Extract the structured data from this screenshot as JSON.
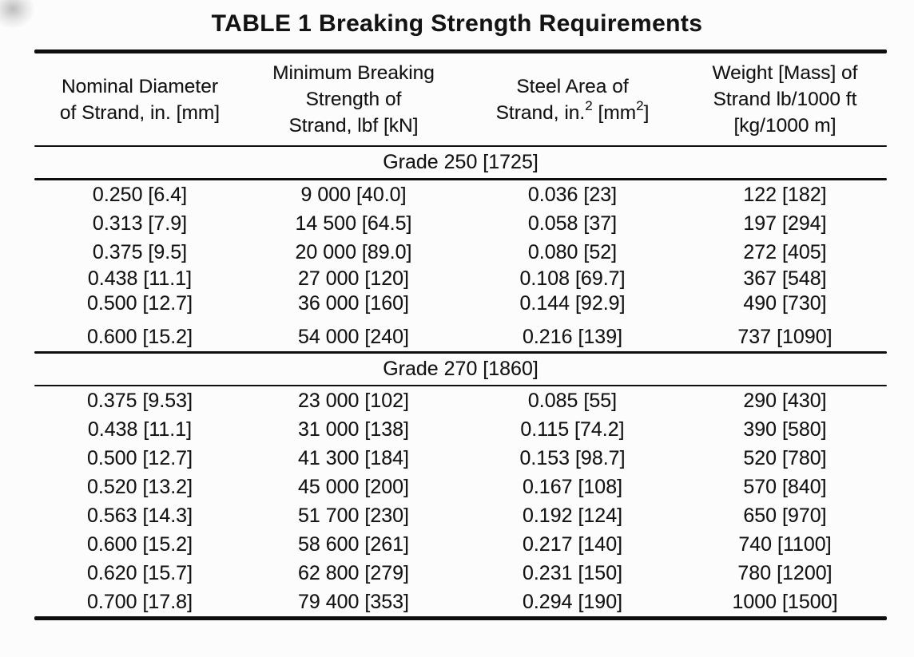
{
  "title": "TABLE 1 Breaking Strength Requirements",
  "colors": {
    "text": "#131313",
    "rule": "#0e0e0e",
    "background": "#fcfcfc"
  },
  "table": {
    "columns": [
      {
        "lines": [
          "Nominal Diameter",
          "of Strand, in. [mm]"
        ]
      },
      {
        "lines": [
          "Minimum Breaking",
          "Strength of",
          "Strand, lbf [kN]"
        ]
      },
      {
        "lines": [
          "Steel Area of"
        ],
        "area_line2": {
          "pre": "Strand, in.",
          "sup1": "2",
          "mid": " [mm",
          "sup2": "2",
          "post": "]"
        }
      },
      {
        "lines": [
          "Weight [Mass] of",
          "Strand lb/1000 ft",
          "[kg/1000 m]"
        ]
      }
    ],
    "sections": [
      {
        "label": "Grade 250 [1725]",
        "rows": [
          [
            "0.250 [6.4]",
            "9 000 [40.0]",
            "0.036 [23]",
            "122 [182]"
          ],
          [
            "0.313 [7.9]",
            "14 500 [64.5]",
            "0.058 [37]",
            "197 [294]"
          ],
          [
            "0.375 [9.5]",
            "20 000 [89.0]",
            "0.080 [52]",
            "272 [405]"
          ],
          [
            "0.438 [11.1]",
            "27 000 [120]",
            "0.108 [69.7]",
            "367 [548]"
          ],
          [
            "0.500 [12.7]",
            "36 000 [160]",
            "0.144 [92.9]",
            "490 [730]"
          ],
          [
            "0.600 [15.2]",
            "54 000 [240]",
            "0.216 [139]",
            "737 [1090]"
          ]
        ]
      },
      {
        "label": "Grade 270 [1860]",
        "rows": [
          [
            "0.375 [9.53]",
            "23 000 [102]",
            "0.085 [55]",
            "290 [430]"
          ],
          [
            "0.438 [11.1]",
            "31 000 [138]",
            "0.115 [74.2]",
            "390 [580]"
          ],
          [
            "0.500 [12.7]",
            "41 300 [184]",
            "0.153 [98.7]",
            "520 [780]"
          ],
          [
            "0.520 [13.2]",
            "45 000 [200]",
            "0.167 [108]",
            "570 [840]"
          ],
          [
            "0.563 [14.3]",
            "51 700 [230]",
            "0.192 [124]",
            "650 [970]"
          ],
          [
            "0.600 [15.2]",
            "58 600 [261]",
            "0.217 [140]",
            "740 [1100]"
          ],
          [
            "0.620 [15.7]",
            "62 800 [279]",
            "0.231 [150]",
            "780 [1200]"
          ],
          [
            "0.700 [17.8]",
            "79 400 [353]",
            "0.294 [190]",
            "1000 [1500]"
          ]
        ]
      }
    ]
  }
}
